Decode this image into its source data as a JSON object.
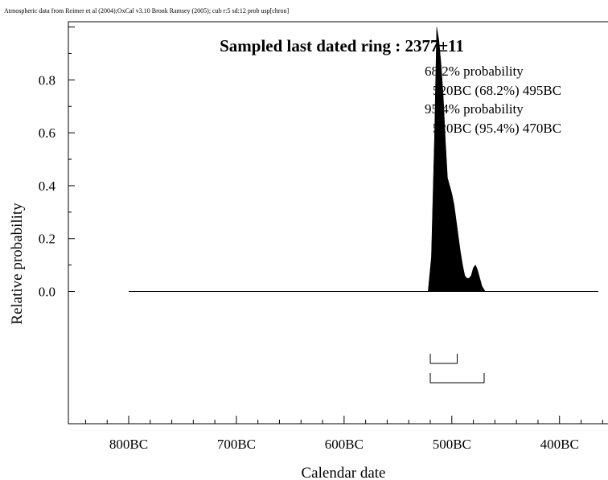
{
  "header_note": "Atmospheric data from Reimer et al (2004);OxCal v3.10 Bronk Ramsey (2005); cub r:5 sd:12 prob usp[chron]",
  "chart_data": {
    "type": "area",
    "title": "Sampled last dated ring : 2377±11",
    "xlabel": "Calendar date",
    "ylabel": "Relative probability",
    "xlim": [
      -856,
      -355
    ],
    "ylim": [
      -0.5,
      1.02
    ],
    "x_ticks": [
      {
        "value": -800,
        "label": "800BC"
      },
      {
        "value": -700,
        "label": "700BC"
      },
      {
        "value": -600,
        "label": "600BC"
      },
      {
        "value": -500,
        "label": "500BC"
      },
      {
        "value": -400,
        "label": "400BC"
      }
    ],
    "y_ticks": [
      {
        "value": 0.0,
        "label": "0.0"
      },
      {
        "value": 0.2,
        "label": "0.2"
      },
      {
        "value": 0.4,
        "label": "0.4"
      },
      {
        "value": 0.6,
        "label": "0.6"
      },
      {
        "value": 0.8,
        "label": "0.8"
      }
    ],
    "baseline_range": [
      -800,
      -364
    ],
    "x": [
      -522,
      -519,
      -516,
      -514,
      -512,
      -510,
      -508,
      -506,
      -504,
      -502,
      -500,
      -498,
      -496,
      -494,
      -492,
      -490,
      -488,
      -486,
      -484,
      -482,
      -480,
      -478,
      -476,
      -474,
      -472,
      -469
    ],
    "y": [
      0,
      0.13,
      0.6,
      1.0,
      0.95,
      0.86,
      0.74,
      0.57,
      0.43,
      0.4,
      0.37,
      0.33,
      0.27,
      0.21,
      0.15,
      0.1,
      0.06,
      0.05,
      0.05,
      0.06,
      0.09,
      0.1,
      0.08,
      0.05,
      0.02,
      0
    ],
    "fill_color": "#000000",
    "annotations": [
      {
        "text": "68.2% probability"
      },
      {
        "text": "520BC (68.2%) 495BC"
      },
      {
        "text": "95.4% probability"
      },
      {
        "text": "520BC (95.4%) 470BC"
      }
    ],
    "ranges": [
      {
        "label": "68.2%",
        "from": -520,
        "to": -495
      },
      {
        "label": "95.4%",
        "from": -520,
        "to": -470
      }
    ]
  }
}
